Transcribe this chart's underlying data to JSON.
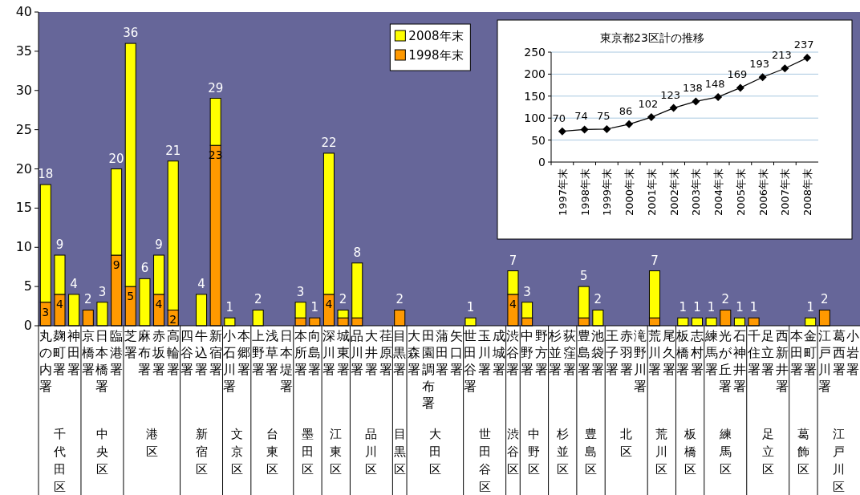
{
  "chart_data": [
    {
      "type": "bar",
      "stacked": true,
      "xlabel": "千代田区",
      "categories": [
        "丸の内署",
        "麹町署",
        "神田署"
      ],
      "series": [
        {
          "color": "#ff9900",
          "values": [
            3,
            4,
            0
          ],
          "value_labels": [
            "3",
            "4",
            null
          ]
        },
        {
          "color": "#ffff00",
          "values": [
            15,
            5,
            4
          ]
        }
      ],
      "totals": [
        "18",
        "9",
        "4"
      ],
      "ylim": [
        0,
        40
      ],
      "yticks": [
        0,
        5,
        10,
        15,
        20,
        25,
        30,
        35,
        40
      ]
    },
    {
      "type": "bar",
      "stacked": true,
      "xlabel": "中央区",
      "categories": [
        "京橋署",
        "日本橋署",
        "臨港署"
      ],
      "series": [
        {
          "color": "#ff9900",
          "values": [
            2,
            0,
            9
          ],
          "value_labels": [
            null,
            null,
            "9"
          ]
        },
        {
          "color": "#ffff00",
          "values": [
            0,
            3,
            11
          ]
        }
      ],
      "totals": [
        "2",
        "3",
        "20"
      ],
      "ylim": [
        0,
        40
      ],
      "tick_labels": "x"
    },
    {
      "type": "bar",
      "stacked": true,
      "xlabel": "港区",
      "categories": [
        "芝署",
        "麻布署",
        "赤坂署",
        "高輪署"
      ],
      "series": [
        {
          "color": "#ff9900",
          "values": [
            5,
            0,
            4,
            2
          ],
          "value_labels": [
            "5",
            null,
            "4",
            "2"
          ]
        },
        {
          "color": "#ffff00",
          "values": [
            31,
            6,
            5,
            19
          ]
        }
      ],
      "totals": [
        "36",
        "6",
        "9",
        "21"
      ],
      "ylim": [
        0,
        40
      ],
      "tick_labels": "x"
    },
    {
      "type": "bar",
      "stacked": true,
      "xlabel": "新宿区",
      "categories": [
        "四谷署",
        "牛込署",
        "新宿署"
      ],
      "series": [
        {
          "color": "#ff9900",
          "values": [
            0,
            0,
            23
          ],
          "value_labels": [
            null,
            null,
            "23"
          ]
        },
        {
          "color": "#ffff00",
          "values": [
            0,
            4,
            6
          ]
        }
      ],
      "totals": [
        null,
        "4",
        "29"
      ],
      "ylim": [
        0,
        40
      ],
      "tick_labels": "x"
    },
    {
      "type": "bar",
      "stacked": true,
      "xlabel": "文京区",
      "categories": [
        "小石川署",
        "本郷署"
      ],
      "series": [
        {
          "color": "#ff9900",
          "values": [
            0,
            0
          ]
        },
        {
          "color": "#ffff00",
          "values": [
            1,
            0
          ]
        }
      ],
      "totals": [
        "1",
        null
      ],
      "ylim": [
        0,
        40
      ],
      "tick_labels": "x"
    },
    {
      "type": "bar",
      "stacked": true,
      "xlabel": "台東区",
      "categories": [
        "上野署",
        "浅草署",
        "日本堤署"
      ],
      "series": [
        {
          "color": "#ff9900",
          "values": [
            0,
            0,
            0
          ]
        },
        {
          "color": "#ffff00",
          "values": [
            2,
            0,
            0
          ]
        }
      ],
      "totals": [
        "2",
        null,
        null
      ],
      "ylim": [
        0,
        40
      ],
      "tick_labels": "x"
    },
    {
      "type": "bar",
      "stacked": true,
      "xlabel": "墨田区",
      "categories": [
        "本所署",
        "向島署"
      ],
      "series": [
        {
          "color": "#ff9900",
          "values": [
            1,
            1
          ]
        },
        {
          "color": "#ffff00",
          "values": [
            2,
            0
          ]
        }
      ],
      "totals": [
        "3",
        "1"
      ],
      "ylim": [
        0,
        40
      ],
      "tick_labels": "x"
    },
    {
      "type": "bar",
      "stacked": true,
      "xlabel": "江東区",
      "categories": [
        "深川署",
        "城東署"
      ],
      "series": [
        {
          "color": "#ff9900",
          "values": [
            4,
            1
          ],
          "value_labels": [
            "4",
            null
          ]
        },
        {
          "color": "#ffff00",
          "values": [
            18,
            1
          ]
        }
      ],
      "totals": [
        "22",
        "2"
      ],
      "ylim": [
        0,
        40
      ],
      "tick_labels": "x"
    },
    {
      "type": "bar",
      "stacked": true,
      "xlabel": "品川区",
      "categories": [
        "品川署",
        "大井署",
        "荏原署"
      ],
      "series": [
        {
          "color": "#ff9900",
          "values": [
            1,
            0,
            0
          ]
        },
        {
          "color": "#ffff00",
          "values": [
            7,
            0,
            0
          ]
        }
      ],
      "totals": [
        "8",
        null,
        null
      ],
      "ylim": [
        0,
        40
      ],
      "tick_labels": "x"
    },
    {
      "type": "bar",
      "stacked": true,
      "xlabel": "目黒区",
      "categories": [
        "目黒署"
      ],
      "series": [
        {
          "color": "#ff9900",
          "values": [
            2
          ]
        },
        {
          "color": "#ffff00",
          "values": [
            0
          ]
        }
      ],
      "totals": [
        "2"
      ],
      "ylim": [
        0,
        40
      ],
      "tick_labels": "x"
    },
    {
      "type": "bar",
      "stacked": true,
      "xlabel": "大田区",
      "categories": [
        "大森署",
        "田園調布署",
        "蒲田署",
        "矢口署"
      ],
      "series": [
        {
          "name": "1998年末",
          "color": "#ff9900",
          "values": [
            0,
            0,
            0,
            0
          ]
        },
        {
          "name": "2008年末",
          "color": "#ffff00",
          "values": [
            0,
            0,
            0,
            0
          ]
        }
      ],
      "ylim": [
        0,
        40
      ],
      "tick_labels": "x",
      "legend": "top"
    },
    {
      "type": "bar",
      "stacked": true,
      "xlabel": "世田谷区",
      "categories": [
        "世田谷署",
        "玉川署",
        "成城署"
      ],
      "series": [
        {
          "color": "#ff9900",
          "values": [
            0,
            0,
            0
          ]
        },
        {
          "color": "#ffff00",
          "values": [
            1,
            0,
            0
          ]
        }
      ],
      "totals": [
        "1",
        null,
        null
      ],
      "ylim": [
        0,
        40
      ],
      "tick_labels": "x"
    },
    {
      "type": "bar",
      "stacked": true,
      "xlabel": "渋谷区",
      "categories": [
        "渋谷署"
      ],
      "series": [
        {
          "color": "#ff9900",
          "values": [
            4
          ],
          "value_labels": [
            "4"
          ]
        },
        {
          "color": "#ffff00",
          "values": [
            3
          ]
        }
      ],
      "totals": [
        "7"
      ],
      "ylim": [
        0,
        40
      ],
      "tick_labels": "x"
    },
    {
      "type": "bar",
      "stacked": true,
      "xlabel": "中野区",
      "categories": [
        "中野署",
        "野方署"
      ],
      "series": [
        {
          "color": "#ff9900",
          "values": [
            1,
            0
          ]
        },
        {
          "color": "#ffff00",
          "values": [
            2,
            0
          ]
        }
      ],
      "totals": [
        "3",
        null
      ],
      "ylim": [
        0,
        40
      ],
      "tick_labels": "x"
    },
    {
      "type": "bar",
      "stacked": true,
      "xlabel": "杉並区",
      "categories": [
        "杉並署",
        "荻窪署"
      ],
      "series": [
        {
          "color": "#ff9900",
          "values": [
            0,
            0
          ]
        },
        {
          "color": "#ffff00",
          "values": [
            0,
            0
          ]
        }
      ],
      "ylim": [
        0,
        40
      ],
      "tick_labels": "x"
    },
    {
      "type": "bar",
      "stacked": true,
      "xlabel": "豊島区",
      "categories": [
        "豊島署",
        "池袋署"
      ],
      "series": [
        {
          "color": "#ff9900",
          "values": [
            1,
            0
          ]
        },
        {
          "color": "#ffff00",
          "values": [
            4,
            2
          ]
        }
      ],
      "totals": [
        "5",
        "2"
      ],
      "ylim": [
        0,
        40
      ],
      "tick_labels": "x"
    },
    {
      "type": "bar",
      "stacked": true,
      "xlabel": "北区",
      "categories": [
        "王子署",
        "赤羽署",
        "滝野川署"
      ],
      "series": [
        {
          "color": "#ff9900",
          "values": [
            0,
            0,
            0
          ]
        },
        {
          "color": "#ffff00",
          "values": [
            0,
            0,
            0
          ]
        }
      ],
      "ylim": [
        0,
        40
      ],
      "tick_labels": "x"
    },
    {
      "type": "bar",
      "stacked": true,
      "xlabel": "荒川区",
      "categories": [
        "荒川署",
        "尾久署"
      ],
      "series": [
        {
          "color": "#ff9900",
          "values": [
            1,
            0
          ]
        },
        {
          "color": "#ffff00",
          "values": [
            6,
            0
          ]
        }
      ],
      "totals": [
        "7",
        null
      ],
      "ylim": [
        0,
        40
      ],
      "tick_labels": "x"
    },
    {
      "type": "bar",
      "stacked": true,
      "xlabel": "板橋区",
      "categories": [
        "板橋署",
        "志村署"
      ],
      "series": [
        {
          "color": "#ff9900",
          "values": [
            0,
            0
          ]
        },
        {
          "color": "#ffff00",
          "values": [
            1,
            1
          ]
        }
      ],
      "totals": [
        "1",
        "1"
      ],
      "ylim": [
        0,
        40
      ],
      "tick_labels": "x"
    },
    {
      "type": "bar",
      "stacked": true,
      "xlabel": "練馬区",
      "categories": [
        "練馬署",
        "光が丘署",
        "石神井署"
      ],
      "series": [
        {
          "color": "#ff9900",
          "values": [
            0,
            2,
            0
          ]
        },
        {
          "color": "#ffff00",
          "values": [
            1,
            0,
            1
          ]
        }
      ],
      "totals": [
        "1",
        "2",
        "1"
      ],
      "ylim": [
        0,
        40
      ],
      "tick_labels": "x"
    },
    {
      "type": "bar",
      "stacked": true,
      "xlabel": "足立区",
      "categories": [
        "千住署",
        "足立署",
        "西新井署"
      ],
      "series": [
        {
          "color": "#ff9900",
          "values": [
            1,
            0,
            0
          ]
        },
        {
          "color": "#ffff00",
          "values": [
            0,
            0,
            0
          ]
        }
      ],
      "totals": [
        "1",
        null,
        null
      ],
      "ylim": [
        0,
        40
      ],
      "tick_labels": "x"
    },
    {
      "type": "bar",
      "stacked": true,
      "xlabel": "葛飾区",
      "categories": [
        "本田署",
        "金町署"
      ],
      "series": [
        {
          "color": "#ff9900",
          "values": [
            0,
            0
          ]
        },
        {
          "color": "#ffff00",
          "values": [
            0,
            1
          ]
        }
      ],
      "totals": [
        null,
        "1"
      ],
      "ylim": [
        0,
        40
      ],
      "tick_labels": "x"
    },
    {
      "type": "bar",
      "stacked": true,
      "xlabel": "江戸川区",
      "categories": [
        "江戸川署",
        "葛西署",
        "小岩署"
      ],
      "series": [
        {
          "color": "#ff9900",
          "values": [
            2,
            0,
            0
          ]
        },
        {
          "color": "#ffff00",
          "values": [
            0,
            0,
            0
          ]
        }
      ],
      "totals": [
        "2",
        null,
        null
      ],
      "ylim": [
        0,
        40
      ],
      "tick_labels": "x"
    },
    {
      "type": "line",
      "title": "東京都23区計の推移",
      "categories": [
        "1997年末",
        "1998年末",
        "1999年末",
        "2000年末",
        "2001年末",
        "2002年末",
        "2003年末",
        "2004年末",
        "2005年末",
        "2006年末",
        "2007年末",
        "2008年末"
      ],
      "series": [
        {
          "color": "#000000",
          "values": [
            70,
            74,
            75,
            86,
            102,
            123,
            138,
            148,
            169,
            193,
            213,
            237
          ]
        }
      ],
      "ylim": [
        0,
        250
      ],
      "yticks": [
        0,
        50,
        100,
        150,
        200,
        250
      ],
      "grid": "y",
      "marker": "diamond",
      "line_style": "solid",
      "data_labels": true
    }
  ]
}
